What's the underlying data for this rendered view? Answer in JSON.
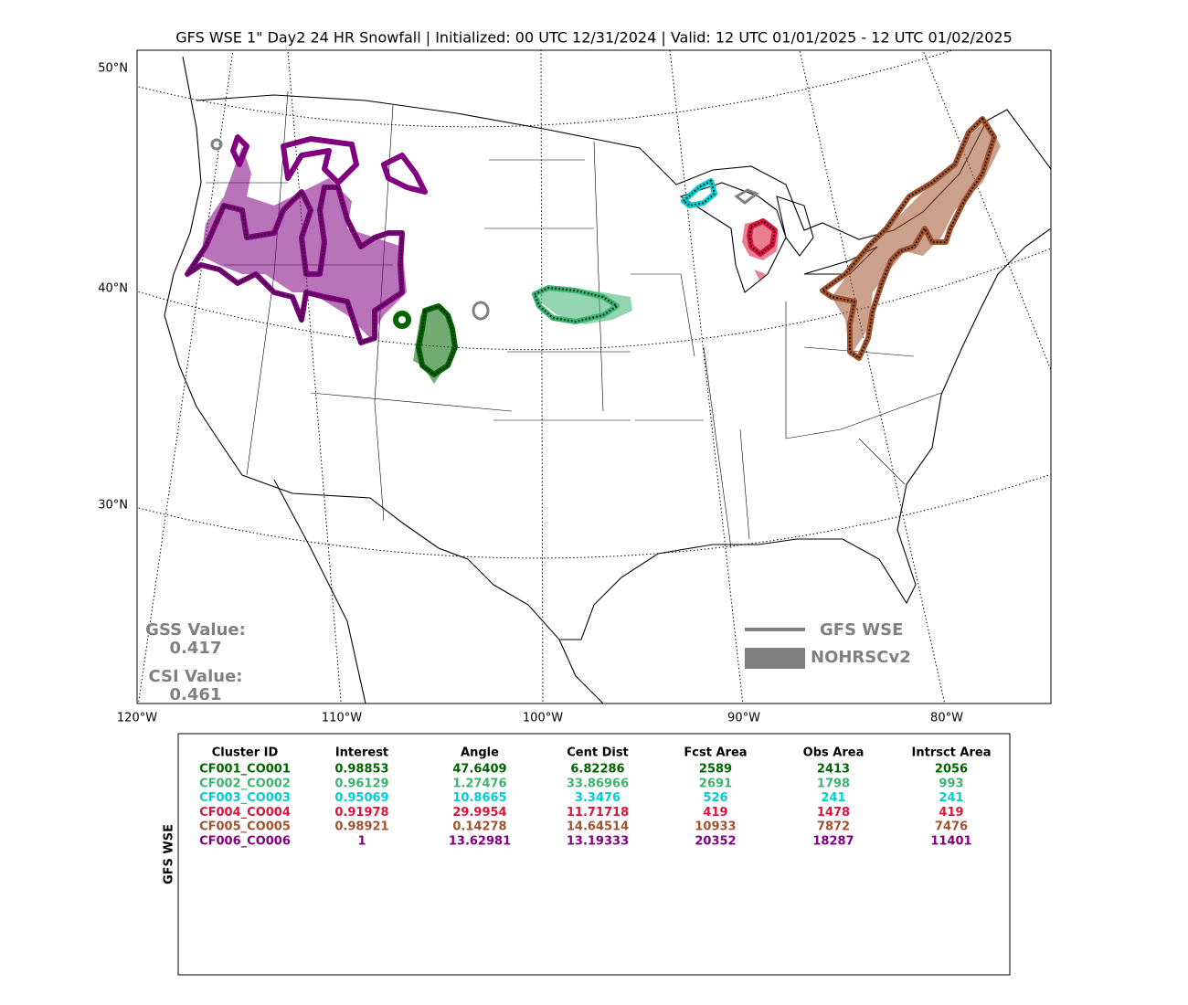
{
  "title": "GFS WSE 1\" Day2 24 HR Snowfall | Initialized: 00 UTC 12/31/2024 | Valid: 12 UTC 01/01/2025 - 12 UTC 01/02/2025",
  "map": {
    "lat_labels": [
      "50°N",
      "40°N",
      "30°N"
    ],
    "lon_labels": [
      "120°W",
      "110°W",
      "100°W",
      "90°W",
      "80°W"
    ]
  },
  "stats": {
    "gss_label": "GSS Value:",
    "gss_value": "0.417",
    "csi_label": "CSI Value:",
    "csi_value": "0.461"
  },
  "legend": [
    {
      "label": "GFS WSE",
      "color": "#808080"
    },
    {
      "label": "NOHRSCv2",
      "color": "#808080"
    }
  ],
  "table": {
    "side_label": "GFS WSE",
    "header": [
      "Cluster ID",
      "Interest",
      "Angle",
      "Cent Dist",
      "Fcst Area",
      "Obs Area",
      "Intrsct Area"
    ],
    "rows": [
      {
        "color": "#006400",
        "cells": [
          "CF001_CO001",
          "0.98853",
          "47.6409",
          "6.82286",
          "2589",
          "2413",
          "2056"
        ]
      },
      {
        "color": "#3cb371",
        "cells": [
          "CF002_CO002",
          "0.96129",
          "1.27476",
          "33.86966",
          "2691",
          "1798",
          "993"
        ]
      },
      {
        "color": "#00ced1",
        "cells": [
          "CF003_CO003",
          "0.95069",
          "10.8665",
          "3.3476",
          "526",
          "241",
          "241"
        ]
      },
      {
        "color": "#dc143c",
        "cells": [
          "CF004_CO004",
          "0.91978",
          "29.9954",
          "11.71718",
          "419",
          "1478",
          "419"
        ]
      },
      {
        "color": "#a0522d",
        "cells": [
          "CF005_CO005",
          "0.98921",
          "0.14278",
          "14.64514",
          "10933",
          "7872",
          "7476"
        ]
      },
      {
        "color": "#800080",
        "cells": [
          "CF006_CO006",
          "1",
          "13.62981",
          "13.19333",
          "20352",
          "18287",
          "11401"
        ]
      }
    ]
  }
}
